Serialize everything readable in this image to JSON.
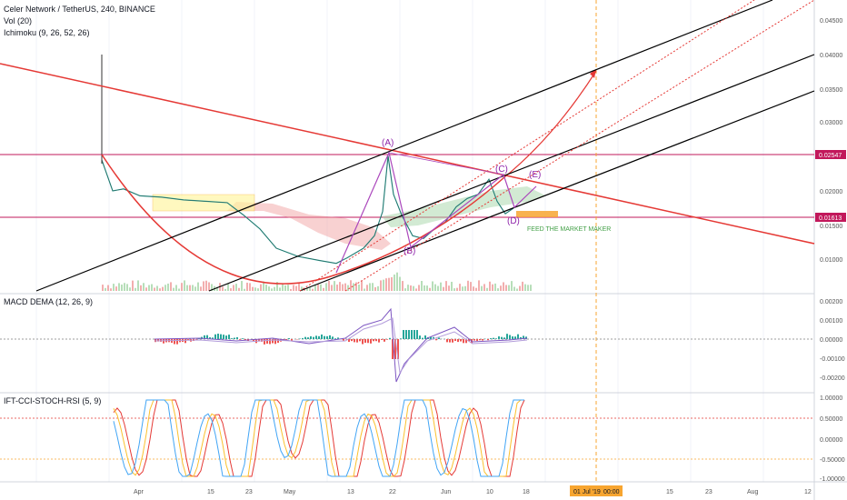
{
  "header": {
    "symbol_line": "Celer Network / TetherUS, 240, BINANCE",
    "vol_label": "Vol (20)",
    "ichimoku_label": "Ichimoku (9, 26, 52, 26)",
    "macd_label": "MACD DEMA (12, 26, 9)",
    "ift_label": "IFT-CCI-STOCH-RSI (5, 9)"
  },
  "price_scale": {
    "ticks": [
      "0.04500",
      "0.04000",
      "0.03500",
      "0.03000",
      "0.02000",
      "0.01500",
      "0.01000"
    ],
    "resistance_tag": "0.02547",
    "support_tag": "0.01613"
  },
  "macd_scale": {
    "ticks": [
      "0.00200",
      "0.00100",
      "0.00000",
      "-0.00100",
      "-0.00200"
    ]
  },
  "ift_scale": {
    "ticks": [
      "1.00000",
      "0.50000",
      "0.00000",
      "-0.50000",
      "-1.00000"
    ]
  },
  "time_axis": {
    "ticks": [
      "Apr",
      "15",
      "23",
      "May",
      "13",
      "22",
      "Jun",
      "10",
      "18",
      "15",
      "23",
      "Aug",
      "12"
    ],
    "cursor_date": "01 Jul '19",
    "cursor_time": "00:00"
  },
  "annotations": {
    "wave_a": "(A)",
    "wave_b": "(B)",
    "wave_c": "(C)",
    "wave_d": "(D)",
    "wave_e": "(E)",
    "note": "FEED THE MARKET MAKER"
  },
  "colors": {
    "red_line": "#e53935",
    "black_line": "#000000",
    "wave_purple": "#9c27b0",
    "tag_red": "#e53935",
    "tag_pink": "#c2185b",
    "cursor_orange": "#f7a530",
    "cloud_green": "#a5d6a7",
    "cloud_red": "#ef9a9a",
    "box_yellow": "#fff59d"
  },
  "chart_data": {
    "type": "line",
    "title": "Celer Network / TetherUS, 240, BINANCE",
    "ylim": [
      0.006,
      0.0482
    ],
    "price_path": [
      [
        0,
        0.025
      ],
      [
        4,
        0.0205
      ],
      [
        8,
        0.0208
      ],
      [
        14,
        0.0198
      ],
      [
        22,
        0.0196
      ],
      [
        30,
        0.0192
      ],
      [
        38,
        0.019
      ],
      [
        46,
        0.0188
      ],
      [
        52,
        0.017
      ],
      [
        58,
        0.015
      ],
      [
        64,
        0.0122
      ],
      [
        72,
        0.011
      ],
      [
        80,
        0.0104
      ],
      [
        86,
        0.01
      ],
      [
        90,
        0.0108
      ],
      [
        96,
        0.0122
      ],
      [
        100,
        0.014
      ],
      [
        103,
        0.0175
      ],
      [
        105,
        0.0256
      ],
      [
        107,
        0.02
      ],
      [
        110,
        0.017
      ],
      [
        114,
        0.014
      ],
      [
        118,
        0.0136
      ],
      [
        122,
        0.015
      ],
      [
        126,
        0.016
      ],
      [
        130,
        0.0182
      ],
      [
        134,
        0.0194
      ],
      [
        138,
        0.02
      ],
      [
        142,
        0.0222
      ],
      [
        145,
        0.019
      ],
      [
        148,
        0.0172
      ],
      [
        151,
        0.018
      ]
    ],
    "levels": {
      "resistance": 0.02547,
      "support": 0.01613
    }
  }
}
